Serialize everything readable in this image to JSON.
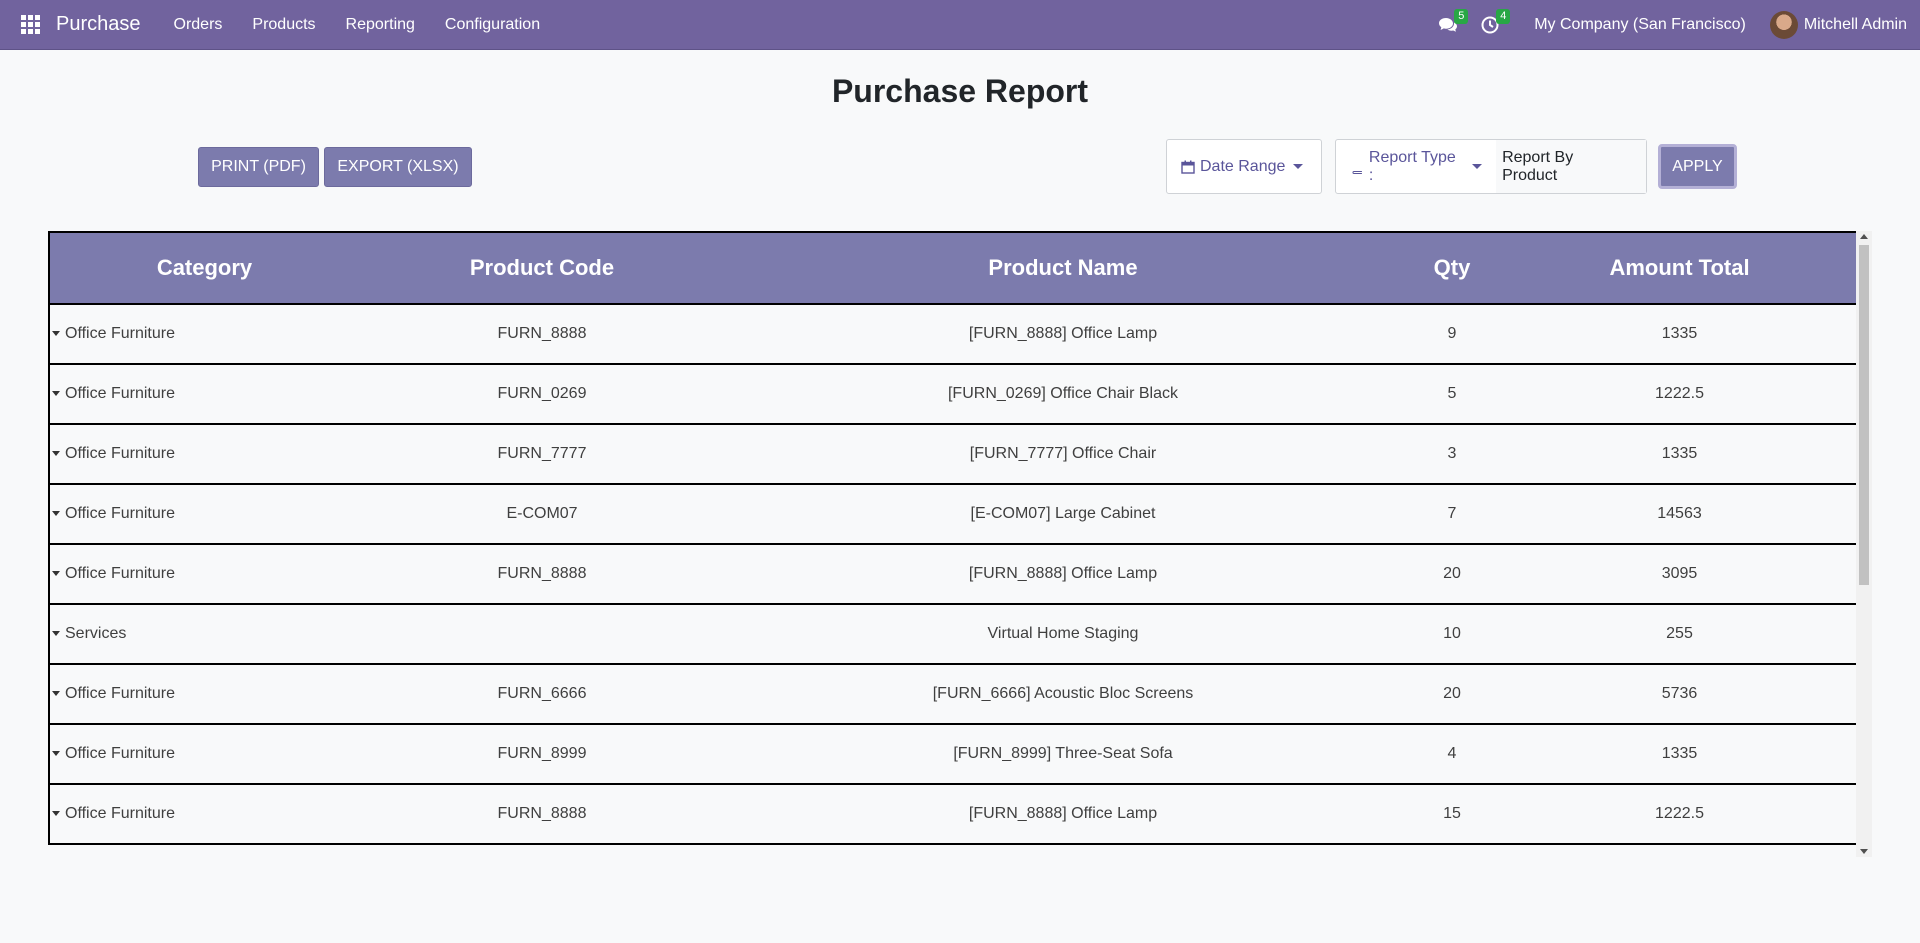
{
  "navbar": {
    "app_name": "Purchase",
    "menu": [
      "Orders",
      "Products",
      "Reporting",
      "Configuration"
    ],
    "messages_count": "5",
    "activities_count": "4",
    "company": "My Company (San Francisco)",
    "user": "Mitchell Admin",
    "color": "#71639e"
  },
  "page": {
    "title": "Purchase Report"
  },
  "toolbar": {
    "print_label": "PRINT (PDF)",
    "export_label": "EXPORT (XLSX)",
    "date_range_label": "Date Range",
    "report_type_label": "Report Type :",
    "report_type_value": "Report By Product",
    "apply_label": "APPLY"
  },
  "table": {
    "headers": [
      "Category",
      "Product Code",
      "Product Name",
      "Qty",
      "Amount Total"
    ],
    "rows": [
      [
        "Office Furniture",
        "FURN_8888",
        "[FURN_8888] Office Lamp",
        "9",
        "1335"
      ],
      [
        "Office Furniture",
        "FURN_0269",
        "[FURN_0269] Office Chair Black",
        "5",
        "1222.5"
      ],
      [
        "Office Furniture",
        "FURN_7777",
        "[FURN_7777] Office Chair",
        "3",
        "1335"
      ],
      [
        "Office Furniture",
        "E-COM07",
        "[E-COM07] Large Cabinet",
        "7",
        "14563"
      ],
      [
        "Office Furniture",
        "FURN_8888",
        "[FURN_8888] Office Lamp",
        "20",
        "3095"
      ],
      [
        "Services",
        "",
        "Virtual Home Staging",
        "10",
        "255"
      ],
      [
        "Office Furniture",
        "FURN_6666",
        "[FURN_6666] Acoustic Bloc Screens",
        "20",
        "5736"
      ],
      [
        "Office Furniture",
        "FURN_8999",
        "[FURN_8999] Three-Seat Sofa",
        "4",
        "1335"
      ],
      [
        "Office Furniture",
        "FURN_8888",
        "[FURN_8888] Office Lamp",
        "15",
        "1222.5"
      ]
    ]
  }
}
